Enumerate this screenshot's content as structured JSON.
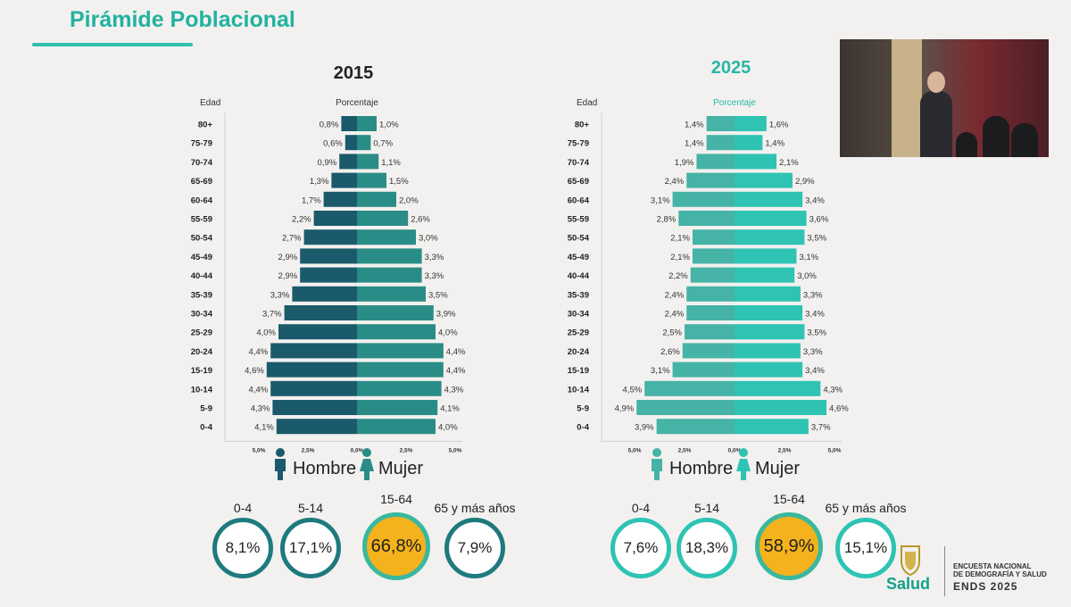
{
  "slide": {
    "title": "Pirámide Poblacional"
  },
  "chart_data": [
    {
      "type": "bar",
      "title": "2015",
      "xlabel": "Porcentaje",
      "ylabel": "Edad",
      "categories": [
        "80+",
        "75-79",
        "70-74",
        "65-69",
        "60-64",
        "55-59",
        "50-54",
        "45-49",
        "40-44",
        "35-39",
        "30-34",
        "25-29",
        "20-24",
        "15-19",
        "10-14",
        "5-9",
        "0-4"
      ],
      "series": [
        {
          "name": "Hombre",
          "values": [
            0.8,
            0.6,
            0.9,
            1.3,
            1.7,
            2.2,
            2.7,
            2.9,
            2.9,
            3.3,
            3.7,
            4.0,
            4.4,
            4.6,
            4.4,
            4.3,
            4.1
          ]
        },
        {
          "name": "Mujer",
          "values": [
            1.0,
            0.7,
            1.1,
            1.5,
            2.0,
            2.6,
            3.0,
            3.3,
            3.3,
            3.5,
            3.9,
            4.0,
            4.4,
            4.4,
            4.3,
            4.1,
            4.0
          ]
        }
      ],
      "data_labels": {
        "hombre": [
          "0,8%",
          "0,6%",
          "0,9%",
          "1,3%",
          "1,7%",
          "2,2%",
          "2,7%",
          "2,9%",
          "2,9%",
          "3,3%",
          "3,7%",
          "4,0%",
          "4,4%",
          "4,6%",
          "4,4%",
          "4,3%",
          "4,1%"
        ],
        "mujer": [
          "1,0%",
          "0,7%",
          "1,1%",
          "1,5%",
          "2,0%",
          "2,6%",
          "3,0%",
          "3,3%",
          "3,3%",
          "3,5%",
          "3,9%",
          "4,0%",
          "4,4%",
          "4,4%",
          "4,3%",
          "4,1%",
          "4,0%"
        ]
      },
      "xlim": [
        -5,
        5
      ],
      "x_ticks": [
        "5,0%",
        "2,5%",
        "0,0%",
        "2,5%",
        "5,0%"
      ],
      "colors": {
        "hombre": "#1a5a6b",
        "mujer": "#2a8c86"
      },
      "legend": {
        "hombre": "Hombre",
        "mujer": "Mujer",
        "placement": "bottom"
      },
      "groups": [
        {
          "label": "0-4",
          "value": "8,1%"
        },
        {
          "label": "5-14",
          "value": "17,1%"
        },
        {
          "label": "15-64",
          "value": "66,8%"
        },
        {
          "label": "65 y más años",
          "value": "7,9%"
        }
      ]
    },
    {
      "type": "bar",
      "title": "2025",
      "xlabel": "Porcentaje",
      "ylabel": "Edad",
      "categories": [
        "80+",
        "75-79",
        "70-74",
        "65-69",
        "60-64",
        "55-59",
        "50-54",
        "45-49",
        "40-44",
        "35-39",
        "30-34",
        "25-29",
        "20-24",
        "15-19",
        "10-14",
        "5-9",
        "0-4"
      ],
      "series": [
        {
          "name": "Hombre",
          "values": [
            1.4,
            1.4,
            1.9,
            2.4,
            3.1,
            2.8,
            2.1,
            2.1,
            2.2,
            2.4,
            2.4,
            2.5,
            2.6,
            3.1,
            4.5,
            4.9,
            3.9
          ]
        },
        {
          "name": "Mujer",
          "values": [
            1.6,
            1.4,
            2.1,
            2.9,
            3.4,
            3.6,
            3.5,
            3.1,
            3.0,
            3.3,
            3.4,
            3.5,
            3.3,
            3.4,
            4.3,
            4.6,
            3.7
          ]
        }
      ],
      "data_labels": {
        "hombre": [
          "1,4%",
          "1,4%",
          "1,9%",
          "2,4%",
          "3,1%",
          "2,8%",
          "2,1%",
          "2,1%",
          "2,2%",
          "2,4%",
          "2,4%",
          "2,5%",
          "2,6%",
          "3,1%",
          "4,5%",
          "4,9%",
          "3,9%"
        ],
        "mujer": [
          "1,6%",
          "1,4%",
          "2,1%",
          "2,9%",
          "3,4%",
          "3,6%",
          "3,5%",
          "3,1%",
          "3,0%",
          "3,3%",
          "3,4%",
          "3,5%",
          "3,3%",
          "3,4%",
          "4,3%",
          "4,6%",
          "3,7%"
        ]
      },
      "xlim": [
        -5,
        5
      ],
      "x_ticks": [
        "5,0%",
        "2,5%",
        "0,0%",
        "2,5%",
        "5,0%"
      ],
      "colors": {
        "hombre": "#45b3a6",
        "mujer": "#2ec3b3"
      },
      "legend": {
        "hombre": "Hombre",
        "mujer": "Mujer",
        "placement": "bottom"
      },
      "groups": [
        {
          "label": "0-4",
          "value": "7,6%"
        },
        {
          "label": "5-14",
          "value": "18,3%"
        },
        {
          "label": "15-64",
          "value": "58,9%"
        },
        {
          "label": "65 y más años",
          "value": "15,1%"
        }
      ]
    }
  ],
  "branding": {
    "logo_text": "Salud",
    "survey_subtitle": [
      "ENCUESTA NACIONAL",
      "DE DEMOGRAFÍA Y SALUD"
    ],
    "survey_title": "ENDS 2025"
  },
  "colors": {
    "title": "#22b2a0",
    "highlight": "#f4b21c"
  }
}
